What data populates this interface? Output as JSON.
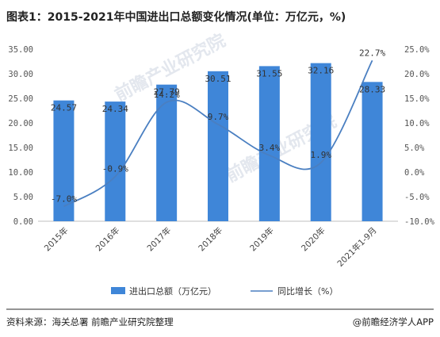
{
  "chart_data": {
    "type": "bar",
    "title": "图表1：2015-2021年中国进出口总额变化情况(单位：万亿元，%)",
    "categories": [
      "2015年",
      "2016年",
      "2017年",
      "2018年",
      "2019年",
      "2020年",
      "2021年1-9月"
    ],
    "series": [
      {
        "name": "进出口总额（万亿元）",
        "type": "bar",
        "axis": "left",
        "values": [
          24.57,
          24.34,
          27.79,
          30.51,
          31.55,
          32.16,
          28.33
        ],
        "labels": [
          "24.57",
          "24.34",
          "27.79",
          "30.51",
          "31.55",
          "32.16",
          "28.33"
        ]
      },
      {
        "name": "同比增长（%）",
        "type": "line",
        "axis": "right",
        "values": [
          -7.0,
          -0.9,
          14.2,
          9.7,
          3.4,
          1.9,
          22.7
        ],
        "labels": [
          "-7.0%",
          "-0.9%",
          "14.2%",
          "9.7%",
          "3.4%",
          "1.9%",
          "22.7%"
        ]
      }
    ],
    "y_left": {
      "min": 0,
      "max": 35,
      "ticks": [
        0,
        5,
        10,
        15,
        20,
        25,
        30,
        35
      ],
      "tick_labels": [
        "0.00",
        "5.00",
        "10.00",
        "15.00",
        "20.00",
        "25.00",
        "30.00",
        "35.00"
      ]
    },
    "y_right": {
      "min": -10,
      "max": 25,
      "ticks": [
        -10,
        -5,
        0,
        5,
        10,
        15,
        20,
        25
      ],
      "tick_labels": [
        "-10.0%",
        "-5.0%",
        "0.0%",
        "5.0%",
        "10.0%",
        "15.0%",
        "20.0%",
        "25.0%"
      ]
    },
    "grid": false,
    "legend": "bottom",
    "colors": {
      "bar": "#3f86d8",
      "line": "#4a7fc1"
    }
  },
  "source": "资料来源：海关总署 前瞻产业研究院整理",
  "credit": "@前瞻经济学人APP",
  "watermark": "前瞻产业研究院"
}
